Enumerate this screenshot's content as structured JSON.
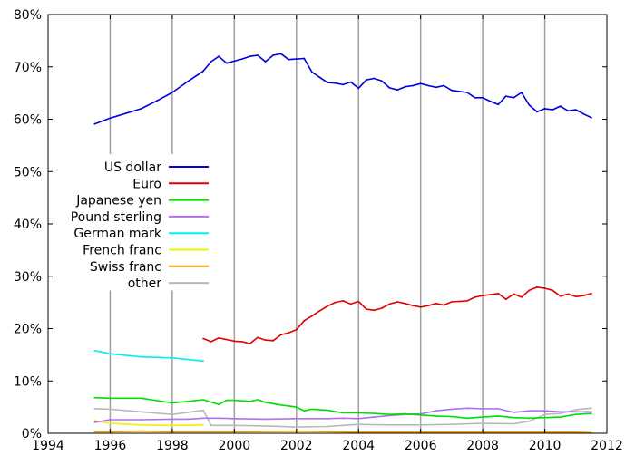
{
  "chart_data": {
    "type": "line",
    "title": "",
    "xlabel": "",
    "ylabel": "",
    "xlim": [
      1994,
      2012
    ],
    "ylim": [
      0,
      80
    ],
    "grid": "vertical",
    "legend_position": "center-left",
    "x_ticks": [
      {
        "value": 1994,
        "label": "1994"
      },
      {
        "value": 1996,
        "label": "1996"
      },
      {
        "value": 1998,
        "label": "1998"
      },
      {
        "value": 2000,
        "label": "2000"
      },
      {
        "value": 2002,
        "label": "2002"
      },
      {
        "value": 2004,
        "label": "2004"
      },
      {
        "value": 2006,
        "label": "2006"
      },
      {
        "value": 2008,
        "label": "2008"
      },
      {
        "value": 2010,
        "label": "2010"
      },
      {
        "value": 2012,
        "label": "2012"
      }
    ],
    "y_ticks": [
      {
        "value": 0,
        "label": "0%"
      },
      {
        "value": 10,
        "label": "10%"
      },
      {
        "value": 20,
        "label": "20%"
      },
      {
        "value": 30,
        "label": "30%"
      },
      {
        "value": 40,
        "label": "40%"
      },
      {
        "value": 50,
        "label": "50%"
      },
      {
        "value": 60,
        "label": "60%"
      },
      {
        "value": 70,
        "label": "70%"
      },
      {
        "value": 80,
        "label": "80%"
      }
    ],
    "series": [
      {
        "name": "US dollar",
        "color": "#0000e0",
        "x": [
          1995.5,
          1996.0,
          1996.5,
          1997.0,
          1997.5,
          1998.0,
          1998.5,
          1999.0,
          1999.25,
          1999.5,
          1999.75,
          2000.0,
          2000.25,
          2000.5,
          2000.75,
          2001.0,
          2001.25,
          2001.5,
          2001.75,
          2002.0,
          2002.25,
          2002.5,
          2002.75,
          2003.0,
          2003.25,
          2003.5,
          2003.75,
          2004.0,
          2004.25,
          2004.5,
          2004.75,
          2005.0,
          2005.25,
          2005.5,
          2005.75,
          2006.0,
          2006.25,
          2006.5,
          2006.75,
          2007.0,
          2007.25,
          2007.5,
          2007.75,
          2008.0,
          2008.25,
          2008.5,
          2008.75,
          2009.0,
          2009.25,
          2009.5,
          2009.75,
          2010.0,
          2010.25,
          2010.5,
          2010.75,
          2011.0,
          2011.25,
          2011.5
        ],
        "values": [
          59.1,
          60.2,
          61.1,
          62.0,
          63.5,
          65.1,
          67.2,
          69.2,
          71.0,
          72.0,
          70.7,
          71.1,
          71.5,
          72.0,
          72.2,
          71.0,
          72.2,
          72.5,
          71.4,
          71.5,
          71.6,
          69.0,
          68.0,
          67.0,
          66.9,
          66.6,
          67.1,
          65.9,
          67.5,
          67.8,
          67.3,
          66.0,
          65.6,
          66.2,
          66.4,
          66.8,
          66.4,
          66.1,
          66.4,
          65.5,
          65.3,
          65.1,
          64.1,
          64.1,
          63.4,
          62.8,
          64.4,
          64.1,
          65.1,
          62.7,
          61.4,
          62.0,
          61.8,
          62.5,
          61.6,
          61.8,
          61.0,
          60.3
        ]
      },
      {
        "name": "Euro",
        "color": "#e00000",
        "x": [
          1999.0,
          1999.25,
          1999.5,
          1999.75,
          2000.0,
          2000.25,
          2000.5,
          2000.75,
          2001.0,
          2001.25,
          2001.5,
          2001.75,
          2002.0,
          2002.25,
          2002.5,
          2002.75,
          2003.0,
          2003.25,
          2003.5,
          2003.75,
          2004.0,
          2004.25,
          2004.5,
          2004.75,
          2005.0,
          2005.25,
          2005.5,
          2005.75,
          2006.0,
          2006.25,
          2006.5,
          2006.75,
          2007.0,
          2007.25,
          2007.5,
          2007.75,
          2008.0,
          2008.25,
          2008.5,
          2008.75,
          2009.0,
          2009.25,
          2009.5,
          2009.75,
          2010.0,
          2010.25,
          2010.5,
          2010.75,
          2011.0,
          2011.25,
          2011.5
        ],
        "values": [
          18.1,
          17.5,
          18.2,
          17.9,
          17.6,
          17.5,
          17.1,
          18.3,
          17.8,
          17.7,
          18.8,
          19.2,
          19.8,
          21.5,
          22.4,
          23.4,
          24.3,
          25.0,
          25.3,
          24.7,
          25.2,
          23.7,
          23.5,
          23.9,
          24.7,
          25.1,
          24.8,
          24.4,
          24.1,
          24.4,
          24.8,
          24.5,
          25.1,
          25.2,
          25.3,
          26.0,
          26.3,
          26.5,
          26.7,
          25.6,
          26.6,
          26.0,
          27.3,
          27.9,
          27.7,
          27.3,
          26.2,
          26.6,
          26.1,
          26.3,
          26.7
        ]
      },
      {
        "name": "Japanese yen",
        "color": "#00e000",
        "x": [
          1995.5,
          1996.0,
          1997.0,
          1998.0,
          1998.5,
          1999.0,
          1999.5,
          1999.75,
          2000.0,
          2000.5,
          2000.75,
          2001.0,
          2001.5,
          2002.0,
          2002.25,
          2002.5,
          2003.0,
          2003.5,
          2004.0,
          2004.5,
          2005.0,
          2005.5,
          2006.0,
          2006.5,
          2007.0,
          2007.5,
          2008.0,
          2008.5,
          2009.0,
          2009.5,
          2010.0,
          2010.5,
          2011.0,
          2011.5
        ],
        "values": [
          6.8,
          6.7,
          6.7,
          5.8,
          6.1,
          6.4,
          5.5,
          6.3,
          6.3,
          6.1,
          6.4,
          5.9,
          5.4,
          5.0,
          4.3,
          4.6,
          4.4,
          3.9,
          3.9,
          3.8,
          3.6,
          3.7,
          3.5,
          3.3,
          3.2,
          2.9,
          3.1,
          3.3,
          3.0,
          2.9,
          3.0,
          3.1,
          3.6,
          3.8
        ]
      },
      {
        "name": "Pound sterling",
        "color": "#b070f0",
        "x": [
          1995.5,
          1996.0,
          1997.0,
          1998.0,
          1998.5,
          1999.0,
          1999.5,
          2000.0,
          2001.0,
          2002.0,
          2003.0,
          2003.5,
          2004.0,
          2004.5,
          2005.0,
          2005.5,
          2006.0,
          2006.5,
          2007.0,
          2007.5,
          2008.0,
          2008.5,
          2009.0,
          2009.5,
          2010.0,
          2010.5,
          2011.0,
          2011.5
        ],
        "values": [
          2.1,
          2.6,
          2.6,
          2.7,
          2.7,
          2.9,
          2.9,
          2.8,
          2.7,
          2.8,
          2.8,
          2.9,
          2.8,
          3.1,
          3.4,
          3.6,
          3.7,
          4.3,
          4.6,
          4.8,
          4.7,
          4.7,
          4.0,
          4.3,
          4.3,
          4.1,
          4.1,
          4.1
        ]
      },
      {
        "name": "German mark",
        "color": "#00f0f0",
        "x": [
          1995.5,
          1996.0,
          1997.0,
          1998.0,
          1999.0
        ],
        "values": [
          15.8,
          15.2,
          14.6,
          14.4,
          13.8
        ]
      },
      {
        "name": "French franc",
        "color": "#f0f000",
        "x": [
          1995.5,
          1996.0,
          1997.0,
          1998.0,
          1999.0
        ],
        "values": [
          2.4,
          1.9,
          1.6,
          1.5,
          1.6
        ]
      },
      {
        "name": "Swiss franc",
        "color": "#f0a000",
        "x": [
          1995.5,
          1996.0,
          1997.0,
          1998.0,
          1999.0,
          2000.0,
          2002.0,
          2004.0,
          2006.0,
          2008.0,
          2009.0,
          2010.0,
          2011.0,
          2011.5
        ],
        "values": [
          0.3,
          0.3,
          0.4,
          0.3,
          0.3,
          0.3,
          0.4,
          0.2,
          0.2,
          0.2,
          0.2,
          0.2,
          0.2,
          0.1
        ]
      },
      {
        "name": "other",
        "color": "#b8b8b8",
        "x": [
          1995.5,
          1996.0,
          1997.0,
          1998.0,
          1998.5,
          1999.0,
          1999.25,
          2000.0,
          2001.0,
          2002.0,
          2003.0,
          2004.0,
          2005.0,
          2006.0,
          2007.0,
          2008.0,
          2009.0,
          2009.5,
          2010.0,
          2010.5,
          2011.0,
          2011.5
        ],
        "values": [
          4.7,
          4.6,
          4.1,
          3.6,
          4.0,
          4.4,
          1.5,
          1.5,
          1.4,
          1.2,
          1.3,
          1.7,
          1.6,
          1.6,
          1.7,
          1.9,
          1.8,
          2.3,
          3.6,
          3.8,
          4.5,
          4.8
        ]
      }
    ]
  }
}
